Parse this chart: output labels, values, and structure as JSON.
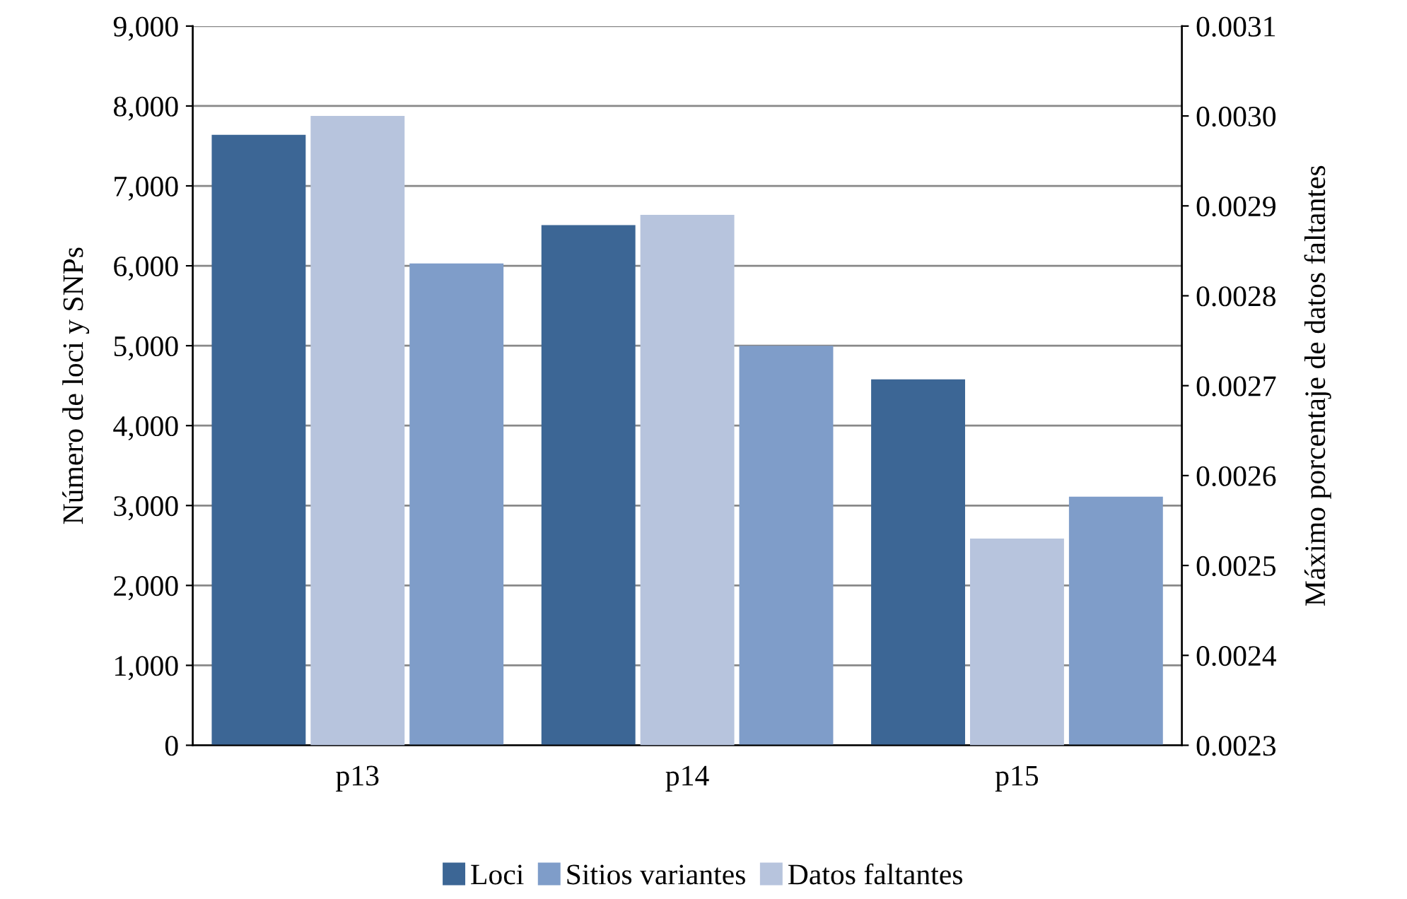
{
  "chart_data": {
    "type": "bar",
    "categories": [
      "p13",
      "p14",
      "p15"
    ],
    "ylabel": "Número de loci y SNPs",
    "y2label": "Máximo porcentaje de datos faltantes",
    "series": [
      {
        "name": "Loci",
        "color": "#3c6695",
        "values": [
          7640,
          6510,
          4580
        ]
      },
      {
        "name": "Datos faltantes",
        "color": "#b7c4dd",
        "values": [
          0.003,
          0.00289,
          0.00253
        ],
        "axis": "y2"
      },
      {
        "name": "Sitios variantes",
        "color": "#7f9dc9",
        "values": [
          6030,
          5000,
          3110
        ]
      }
    ],
    "ylim": [
      0,
      9000
    ],
    "yticks": [
      {
        "value": 0,
        "label": "0"
      },
      {
        "value": 1000,
        "label": "1,000"
      },
      {
        "value": 2000,
        "label": "2,000"
      },
      {
        "value": 3000,
        "label": "3,000"
      },
      {
        "value": 4000,
        "label": "4,000"
      },
      {
        "value": 5000,
        "label": "5,000"
      },
      {
        "value": 6000,
        "label": "6,000"
      },
      {
        "value": 7000,
        "label": "7,000"
      },
      {
        "value": 8000,
        "label": "8,000"
      },
      {
        "value": 9000,
        "label": "9,000"
      }
    ],
    "y2lim": [
      0.0023,
      0.0031
    ],
    "y2ticks": [
      0.0023,
      0.0024,
      0.0025,
      0.0026,
      0.0027,
      0.0028,
      0.0029,
      {
        "value": 0.003,
        "label": "0.0030"
      },
      0.0031
    ],
    "grid": "y",
    "legend": "bottom"
  }
}
